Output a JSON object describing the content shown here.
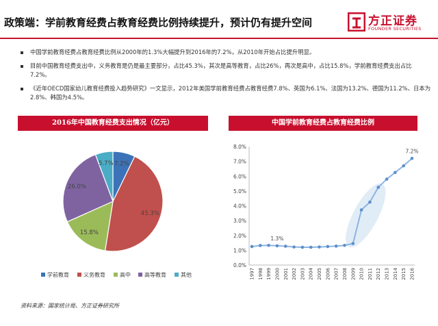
{
  "header": {
    "title": "政策端：学前教育经费占教育经费比例持续提升，预计仍有提升空间",
    "logo_cn": "方正证券",
    "logo_en": "FOUNDER SECURITIES"
  },
  "bullets": [
    "中国学前教育经费占教育经费比例从2000年的1.3%大幅提升到2016年的7.2%，从2010年开始占比提升明显。",
    "目前中国教育经费支出中，义务教育是仍是最主要部分，占比45.3%，其次是高等教育，占比26%，再次是高中，占比15.8%，学前教育经费支出占比7.2%。",
    "《近年OECD国家幼儿教育经费投入趋势研究》一文显示，2012年美国学前教育经费占教育经费7.8%、英国为6.1%、法国为13.2%、德国为11.2%、日本为2.8%、韩国为4.5%。"
  ],
  "source": "资料来源：国家统计局、方正证券研究所",
  "colors": {
    "brand_red": "#c8102e",
    "pie": [
      "#3c73b8",
      "#c0504d",
      "#9bbb59",
      "#7f63a1",
      "#4bacc6"
    ],
    "line": "#8db3e2",
    "highlight": "#dbe9f5"
  },
  "chart_data": [
    {
      "type": "pie",
      "title": "2016年中国教育经费支出情况（亿元）",
      "categories": [
        "学前教育",
        "义务教育",
        "高中",
        "高等教育",
        "其他"
      ],
      "values": [
        7.2,
        45.3,
        15.8,
        26.0,
        5.7
      ],
      "data_labels": [
        "7.2%",
        "45.3%",
        "15.8%",
        "26.0%",
        "5.7%"
      ],
      "legend": "bottom"
    },
    {
      "type": "line",
      "title": "中国学前教育经费占教育经费比例",
      "x": [
        "1997",
        "1998",
        "1999",
        "2000",
        "2001",
        "2002",
        "2003",
        "2004",
        "2005",
        "2006",
        "2007",
        "2008",
        "2009",
        "2010",
        "2011",
        "2012",
        "2013",
        "2014",
        "2015",
        "2016"
      ],
      "values": [
        1.25,
        1.32,
        1.33,
        1.3,
        1.27,
        1.22,
        1.2,
        1.2,
        1.22,
        1.25,
        1.28,
        1.33,
        1.45,
        3.72,
        4.25,
        5.25,
        5.8,
        6.25,
        6.7,
        7.2
      ],
      "ylim": [
        0,
        8
      ],
      "yticks": [
        "0.0%",
        "1.0%",
        "2.0%",
        "3.0%",
        "4.0%",
        "5.0%",
        "6.0%",
        "7.0%",
        "8.0%"
      ],
      "annotations": [
        {
          "x": "2000",
          "label": "1.3%"
        },
        {
          "x": "2016",
          "label": "7.2%"
        }
      ],
      "highlight_range": [
        "2009",
        "2012"
      ],
      "grid": false
    }
  ]
}
